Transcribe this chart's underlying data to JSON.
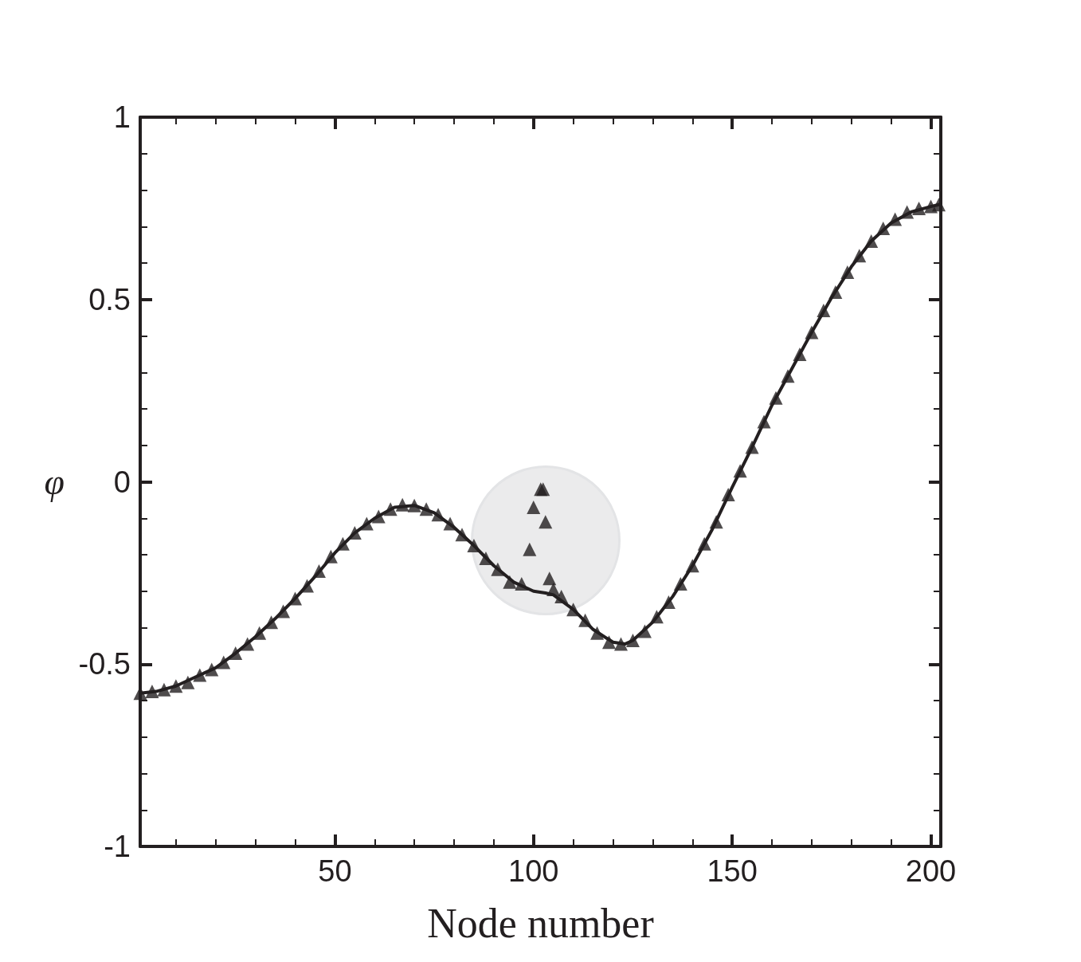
{
  "chart_data": {
    "type": "line",
    "xlabel": "Node number",
    "ylabel": "φ",
    "xlim": [
      1,
      202.5
    ],
    "ylim": [
      -1,
      1
    ],
    "xticks": [
      {
        "value": 10,
        "label": null
      },
      {
        "value": 20,
        "label": null
      },
      {
        "value": 30,
        "label": null
      },
      {
        "value": 40,
        "label": null
      },
      50,
      {
        "value": 60,
        "label": null
      },
      {
        "value": 70,
        "label": null
      },
      {
        "value": 80,
        "label": null
      },
      {
        "value": 90,
        "label": null
      },
      100,
      {
        "value": 110,
        "label": null
      },
      {
        "value": 120,
        "label": null
      },
      {
        "value": 130,
        "label": null
      },
      {
        "value": 140,
        "label": null
      },
      150,
      {
        "value": 160,
        "label": null
      },
      {
        "value": 170,
        "label": null
      },
      {
        "value": 180,
        "label": null
      },
      {
        "value": 190,
        "label": null
      },
      200
    ],
    "yticks": [
      -1,
      {
        "value": -0.9,
        "label": null
      },
      {
        "value": -0.8,
        "label": null
      },
      {
        "value": -0.7,
        "label": null
      },
      {
        "value": -0.6,
        "label": null
      },
      -0.5,
      {
        "value": -0.4,
        "label": null
      },
      {
        "value": -0.3,
        "label": null
      },
      {
        "value": -0.2,
        "label": null
      },
      {
        "value": -0.1,
        "label": null
      },
      0,
      {
        "value": 0.1,
        "label": null
      },
      {
        "value": 0.2,
        "label": null
      },
      {
        "value": 0.3,
        "label": null
      },
      {
        "value": 0.4,
        "label": null
      },
      0.5,
      {
        "value": 0.6,
        "label": null
      },
      {
        "value": 0.7,
        "label": null
      },
      {
        "value": 0.8,
        "label": null
      },
      {
        "value": 0.9,
        "label": null
      },
      1
    ],
    "grid": false,
    "series": [
      {
        "color": "#231f20",
        "marker": "none",
        "line_style": "solid",
        "x": [
          1,
          5,
          10,
          15,
          20,
          25,
          30,
          35,
          40,
          45,
          50,
          55,
          60,
          65,
          70,
          75,
          80,
          85,
          90,
          95,
          100,
          103,
          105,
          110,
          115,
          120,
          123,
          125,
          130,
          135,
          140,
          145,
          150,
          155,
          160,
          165,
          170,
          175,
          180,
          185,
          190,
          195,
          200,
          202
        ],
        "values": [
          -0.58,
          -0.575,
          -0.56,
          -0.535,
          -0.51,
          -0.47,
          -0.425,
          -0.375,
          -0.32,
          -0.26,
          -0.195,
          -0.14,
          -0.1,
          -0.07,
          -0.065,
          -0.085,
          -0.125,
          -0.175,
          -0.23,
          -0.275,
          -0.3,
          -0.305,
          -0.31,
          -0.35,
          -0.405,
          -0.44,
          -0.445,
          -0.435,
          -0.385,
          -0.315,
          -0.23,
          -0.13,
          -0.015,
          0.095,
          0.21,
          0.31,
          0.41,
          0.505,
          0.59,
          0.66,
          0.71,
          0.74,
          0.755,
          0.76
        ]
      },
      {
        "type": "scatter",
        "color": "#231f20",
        "marker": "triangle",
        "x": [
          1,
          4,
          7,
          10,
          13,
          16,
          19,
          22,
          25,
          28,
          31,
          34,
          37,
          40,
          43,
          46,
          49,
          52,
          55,
          58,
          61,
          64,
          67,
          70,
          73,
          76,
          79,
          82,
          85,
          88,
          91,
          94,
          97,
          99,
          100,
          101.8,
          102.4,
          103,
          104,
          105,
          107,
          110,
          113,
          116,
          119,
          122,
          125,
          128,
          131,
          134,
          137,
          140,
          143,
          146,
          149,
          152,
          155,
          158,
          161,
          164,
          167,
          170,
          173,
          176,
          179,
          182,
          185,
          188,
          191,
          194,
          197,
          200,
          202
        ],
        "values": [
          -0.58,
          -0.575,
          -0.57,
          -0.56,
          -0.55,
          -0.53,
          -0.515,
          -0.495,
          -0.47,
          -0.445,
          -0.415,
          -0.385,
          -0.355,
          -0.32,
          -0.285,
          -0.245,
          -0.205,
          -0.17,
          -0.14,
          -0.115,
          -0.095,
          -0.075,
          -0.063,
          -0.065,
          -0.075,
          -0.09,
          -0.115,
          -0.145,
          -0.175,
          -0.21,
          -0.24,
          -0.275,
          -0.28,
          -0.185,
          -0.07,
          -0.02,
          -0.02,
          -0.11,
          -0.265,
          -0.295,
          -0.315,
          -0.35,
          -0.38,
          -0.415,
          -0.44,
          -0.445,
          -0.435,
          -0.41,
          -0.37,
          -0.33,
          -0.28,
          -0.23,
          -0.17,
          -0.11,
          -0.035,
          0.03,
          0.095,
          0.165,
          0.23,
          0.29,
          0.35,
          0.41,
          0.47,
          0.52,
          0.575,
          0.62,
          0.66,
          0.695,
          0.72,
          0.74,
          0.75,
          0.755,
          0.76
        ]
      }
    ]
  }
}
